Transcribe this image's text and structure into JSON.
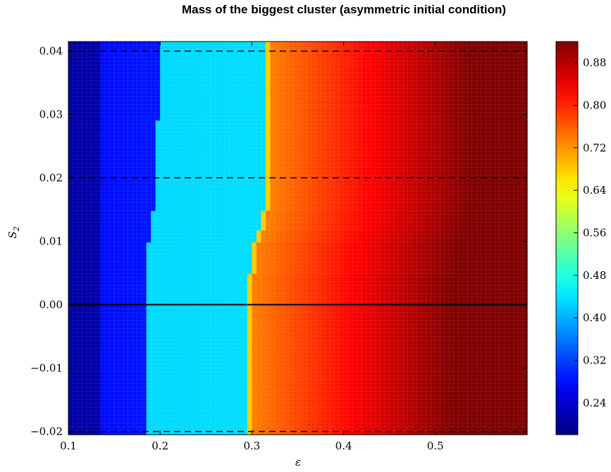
{
  "chart_data": {
    "type": "heatmap",
    "title": "Mass of the biggest cluster (asymmetric initial condition)",
    "xlabel": "ε",
    "ylabel": "S₂",
    "ylabel_sub": "2",
    "ylabel_main": "S",
    "xlim": [
      0.1,
      0.6
    ],
    "ylim": [
      -0.0205,
      0.0415
    ],
    "x_ticks": [
      0.1,
      0.2,
      0.3,
      0.4,
      0.5
    ],
    "x_tick_labels": [
      "0.1",
      "0.2",
      "0.3",
      "0.4",
      "0.5"
    ],
    "y_ticks": [
      -0.02,
      -0.01,
      0.0,
      0.01,
      0.02,
      0.03,
      0.04
    ],
    "y_tick_labels": [
      "−0.02",
      "−0.01",
      "0.00",
      "0.01",
      "0.02",
      "0.03",
      "0.04"
    ],
    "colormap": "jet",
    "colorbar": {
      "range": [
        0.18,
        0.92
      ],
      "ticks": [
        0.24,
        0.32,
        0.4,
        0.48,
        0.56,
        0.64,
        0.72,
        0.8,
        0.88
      ],
      "tick_labels": [
        "0.24",
        "0.32",
        "0.40",
        "0.48",
        "0.56",
        "0.64",
        "0.72",
        "0.80",
        "0.88"
      ]
    },
    "reference_lines": [
      {
        "y": 0.04,
        "style": "dashed"
      },
      {
        "y": 0.02,
        "style": "dashed"
      },
      {
        "y": 0.0,
        "style": "solid"
      },
      {
        "y": -0.02,
        "style": "dashed"
      }
    ],
    "regions": [
      {
        "name": "dark-blue",
        "value": 0.22,
        "x_from": 0.1
      },
      {
        "name": "blue",
        "value": 0.3,
        "boundary_from_prev": [
          [
            -0.02,
            0.133
          ],
          [
            0.0,
            0.133
          ],
          [
            0.04,
            0.137
          ]
        ]
      },
      {
        "name": "cyan",
        "value": 0.43,
        "boundary_from_prev": [
          [
            -0.02,
            0.185
          ],
          [
            0.0,
            0.185
          ],
          [
            0.009,
            0.185
          ],
          [
            0.01,
            0.189
          ],
          [
            0.015,
            0.193
          ],
          [
            0.025,
            0.195
          ],
          [
            0.029,
            0.198
          ],
          [
            0.035,
            0.198
          ],
          [
            0.04,
            0.2
          ]
        ]
      },
      {
        "name": "yellow-orange-red",
        "value": 0.7,
        "boundary_from_prev": [
          [
            -0.02,
            0.295
          ],
          [
            0.0,
            0.295
          ],
          [
            0.005,
            0.299
          ],
          [
            0.01,
            0.305
          ],
          [
            0.012,
            0.311
          ],
          [
            0.015,
            0.315
          ],
          [
            0.04,
            0.316
          ]
        ]
      }
    ]
  }
}
